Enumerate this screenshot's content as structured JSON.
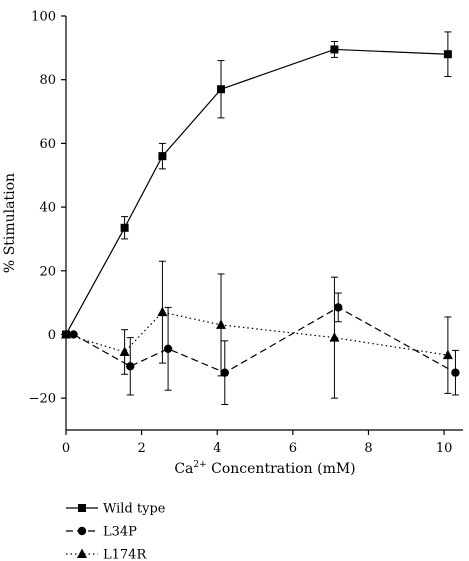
{
  "chart_data": {
    "type": "line",
    "xlabel_pre": "Ca",
    "xlabel_sup": "2+",
    "xlabel_post": " Concentration (mM)",
    "ylabel": "% Stimulation",
    "xlim": [
      0,
      10.5
    ],
    "ylim": [
      -30,
      100
    ],
    "xticks": [
      0,
      2,
      4,
      6,
      8,
      10
    ],
    "yticks": [
      -20,
      0,
      20,
      40,
      60,
      80,
      100
    ],
    "grid": false,
    "legend_position": "bottom-left",
    "series": [
      {
        "name": "Wild type",
        "marker": "square",
        "dash": "solid",
        "x": [
          0,
          1.55,
          2.55,
          4.1,
          7.1,
          10.1
        ],
        "y": [
          0,
          33.5,
          56,
          77,
          89.5,
          88
        ],
        "err": [
          0,
          3.5,
          4,
          9,
          2.5,
          7
        ]
      },
      {
        "name": "L34P",
        "marker": "circle",
        "dash": "dashed",
        "x": [
          0.2,
          1.7,
          2.7,
          4.2,
          7.2,
          10.3
        ],
        "y": [
          0,
          -10,
          -4.5,
          -12,
          8.5,
          -12
        ],
        "err": [
          0,
          9,
          13,
          10,
          4.5,
          7
        ]
      },
      {
        "name": "L174R",
        "marker": "triangle",
        "dash": "dotted",
        "x": [
          0,
          1.55,
          2.55,
          4.1,
          7.1,
          10.1
        ],
        "y": [
          0,
          -5.5,
          7,
          3,
          -1,
          -6.5
        ],
        "err": [
          0,
          7,
          16,
          16,
          19,
          12
        ]
      }
    ]
  }
}
